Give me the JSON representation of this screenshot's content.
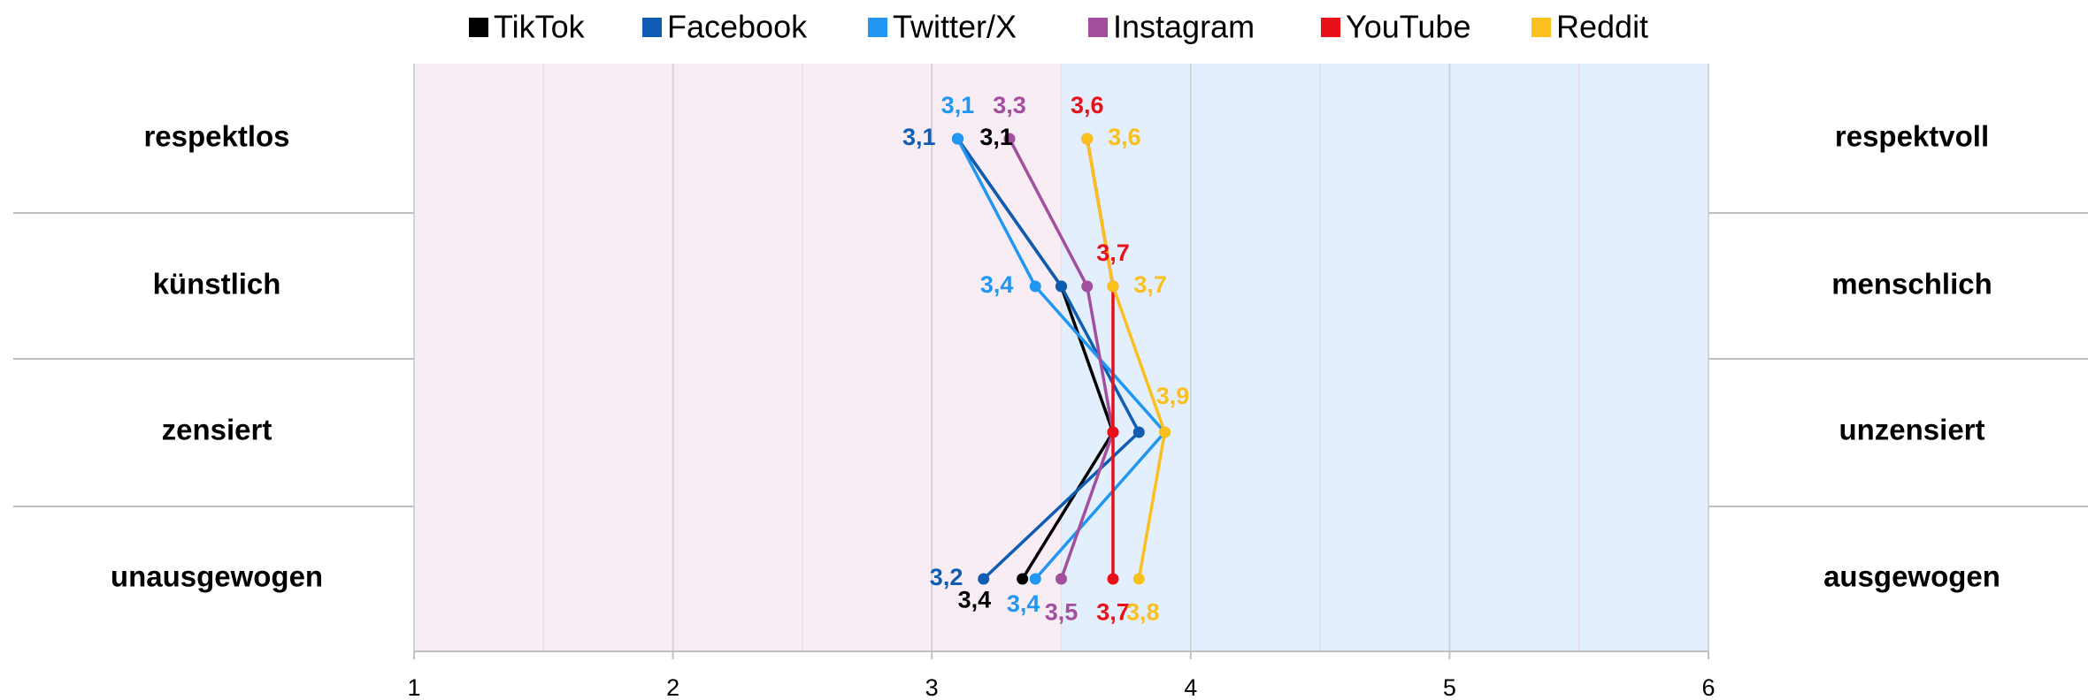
{
  "chart_data": {
    "type": "line",
    "categories": [
      "respektlos",
      "künstlich",
      "zensiert",
      "unausgewogen"
    ],
    "right_labels": [
      "respektvoll",
      "menschlich",
      "unzensiert",
      "ausgewogen"
    ],
    "xlim": [
      1,
      6
    ],
    "xticks": [
      1,
      2,
      3,
      4,
      5,
      6
    ],
    "minor_xticks": [
      1.5,
      2.5,
      3.5,
      4.5,
      5.5
    ],
    "grid": true,
    "legend": "top",
    "background": [
      {
        "from": 1,
        "to": 3.5,
        "color": "#f8edf5"
      },
      {
        "from": 3.5,
        "to": 6,
        "color": "#e3effc"
      }
    ],
    "series": [
      {
        "name": "TikTok",
        "color": "#000000",
        "values": [
          3.1,
          3.5,
          3.7,
          3.35
        ],
        "value_labels": [
          "3,1",
          null,
          null,
          "3,4"
        ]
      },
      {
        "name": "Facebook",
        "color": "#0f5db3",
        "values": [
          3.1,
          3.5,
          3.8,
          3.2
        ],
        "value_labels": [
          "3,1",
          null,
          null,
          "3,2"
        ]
      },
      {
        "name": "Twitter/X",
        "color": "#2196f3",
        "values": [
          3.1,
          3.4,
          3.9,
          3.4
        ],
        "value_labels": [
          "3,1",
          "3,4",
          null,
          "3,4"
        ]
      },
      {
        "name": "Instagram",
        "color": "#a24f9e",
        "values": [
          3.3,
          3.6,
          3.7,
          3.5
        ],
        "value_labels": [
          "3,3",
          null,
          null,
          "3,5"
        ]
      },
      {
        "name": "YouTube",
        "color": "#e8111a",
        "values": [
          3.6,
          3.7,
          3.7,
          3.7
        ],
        "value_labels": [
          "3,6",
          "3,7",
          null,
          "3,7"
        ]
      },
      {
        "name": "Reddit",
        "color": "#fbbf1e",
        "values": [
          3.6,
          3.7,
          3.9,
          3.8
        ],
        "value_labels": [
          "3,6",
          "3,7",
          "3,9",
          "3,8"
        ]
      }
    ]
  }
}
